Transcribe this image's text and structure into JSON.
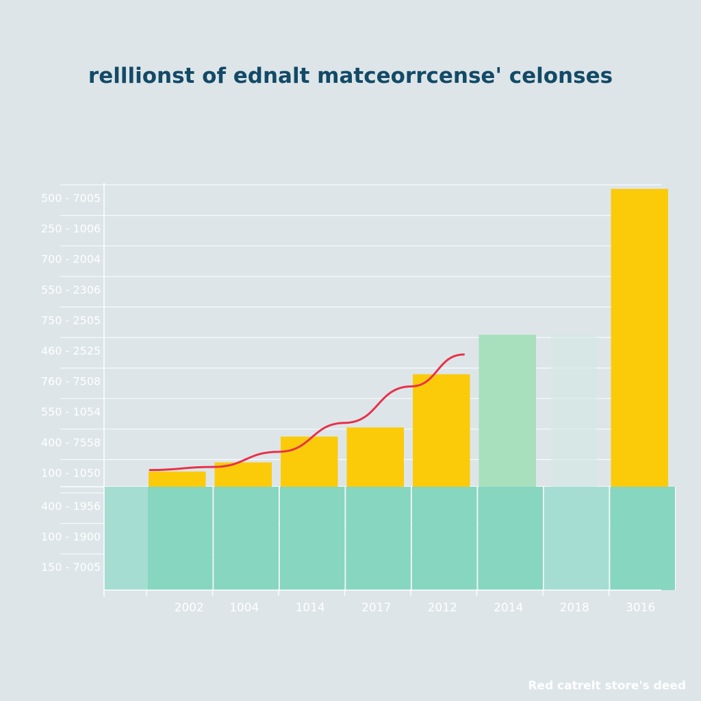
{
  "chart_data": {
    "type": "bar",
    "title": "relllionst of ednalt matceorrcense' celonses",
    "footnote": "Red catrelt store's deed",
    "categories": [
      "2002",
      "1004",
      "1014",
      "2017",
      "2012",
      "2014",
      "2018",
      "3016"
    ],
    "y_tick_labels": [
      "500 - 7005",
      "250 - 1006",
      "700 - 2004",
      "550 - 2306",
      "750 - 2505",
      "460 - 2525",
      "760 - 7508",
      "550 - 1054",
      "400 - 7558",
      "100 - 1050",
      "400 - 1956",
      "100 - 1900",
      "150 - 7005"
    ],
    "ylim": [
      -3,
      10
    ],
    "grid": true,
    "series": [
      {
        "type": "bar",
        "values": [
          0.5,
          0.8,
          1.65,
          1.95,
          3.7,
          5.0,
          0,
          9.8
        ],
        "colors": [
          "#fbcb0a",
          "#fbcb0a",
          "#fbcb0a",
          "#fbcb0a",
          "#fbcb0a",
          "#a8dfbd",
          "#fbcb0a",
          "#fbcb0a"
        ]
      },
      {
        "type": "bar",
        "values": [
          -3.4,
          -3.4,
          -3.4,
          -3.4,
          -3.4,
          -3.4,
          -3.4,
          -3.4
        ],
        "colors": [
          "#86d6c0",
          "#86d6c0",
          "#86d6c0",
          "#86d6c0",
          "#86d6c0",
          "#86d6c0",
          "#a6ddd3",
          "#86d6c0"
        ]
      },
      {
        "type": "line",
        "color": "#e8304a",
        "x": [
          0.55,
          1.5,
          2.5,
          3.5,
          4.5,
          5.3
        ],
        "values": [
          0.55,
          0.65,
          1.15,
          2.1,
          3.3,
          4.35
        ]
      }
    ],
    "colors": {
      "background": "#dde5e9",
      "title": "#134a66",
      "grid": "#ffffff",
      "tick": "#ffffff",
      "footer": "#ffffff"
    }
  }
}
